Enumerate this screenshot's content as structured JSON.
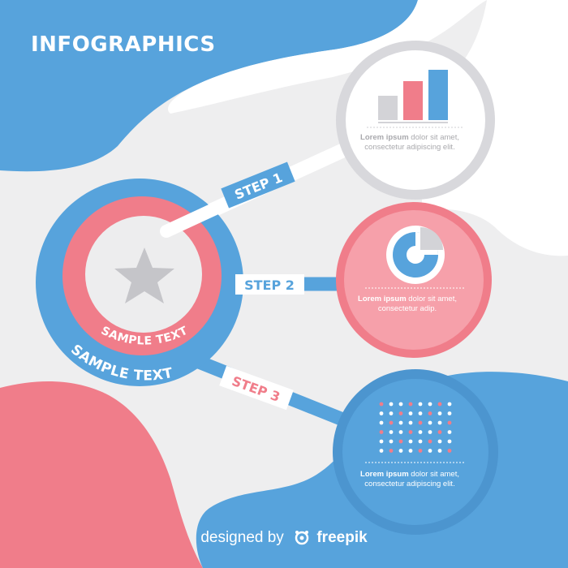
{
  "title": "INFOGRAPHICS",
  "center": {
    "label_inner": "SAMPLE TEXT",
    "label_outer": "SAMPLE TEXT"
  },
  "steps": [
    {
      "label": "STEP 1",
      "desc_bold": "Lorem ipsum",
      "desc_rest": " dolor sit amet, consectetur adipiscing elit."
    },
    {
      "label": "STEP 2",
      "desc_bold": "Lorem ipsum",
      "desc_rest": " dolor sit amet, consectetur adip."
    },
    {
      "label": "STEP 3",
      "desc_bold": "Lorem ipsum",
      "desc_rest": " dolor sit amet, consectetur adipiscing elit."
    }
  ],
  "footer": {
    "prefix": "designed by",
    "brand": "freepik"
  },
  "colors": {
    "blue": "#57a3dc",
    "pink": "#f07d8a",
    "gray": "#d8d8dc",
    "bg": "#eeeeef"
  },
  "icons": [
    "star-icon",
    "bar-chart-icon",
    "pie-chart-icon",
    "dot-grid-icon",
    "freepik-logo-icon"
  ]
}
